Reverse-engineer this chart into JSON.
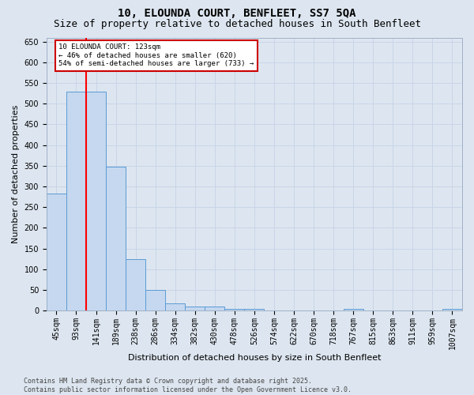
{
  "title1": "10, ELOUNDA COURT, BENFLEET, SS7 5QA",
  "title2": "Size of property relative to detached houses in South Benfleet",
  "xlabel": "Distribution of detached houses by size in South Benfleet",
  "ylabel": "Number of detached properties",
  "categories": [
    "45sqm",
    "93sqm",
    "141sqm",
    "189sqm",
    "238sqm",
    "286sqm",
    "334sqm",
    "382sqm",
    "430sqm",
    "478sqm",
    "526sqm",
    "574sqm",
    "622sqm",
    "670sqm",
    "718sqm",
    "767sqm",
    "815sqm",
    "863sqm",
    "911sqm",
    "959sqm",
    "1007sqm"
  ],
  "values": [
    283,
    530,
    530,
    348,
    125,
    50,
    18,
    10,
    10,
    5,
    4,
    0,
    0,
    0,
    0,
    5,
    0,
    0,
    0,
    0,
    4
  ],
  "bar_color": "#c5d8ef",
  "bar_edge_color": "#5b9bd5",
  "grid_color": "#c8d4e8",
  "background_color": "#dde6f0",
  "red_line_x": 1.5,
  "annotation_text": "10 ELOUNDA COURT: 123sqm\n← 46% of detached houses are smaller (620)\n54% of semi-detached houses are larger (733) →",
  "annotation_box_color": "#ffffff",
  "annotation_box_edge": "#cc0000",
  "ylim": [
    0,
    660
  ],
  "yticks": [
    0,
    50,
    100,
    150,
    200,
    250,
    300,
    350,
    400,
    450,
    500,
    550,
    600,
    650
  ],
  "footer": "Contains HM Land Registry data © Crown copyright and database right 2025.\nContains public sector information licensed under the Open Government Licence v3.0.",
  "title1_fontsize": 10,
  "title2_fontsize": 9,
  "tick_fontsize": 7,
  "label_fontsize": 8,
  "footer_fontsize": 6
}
